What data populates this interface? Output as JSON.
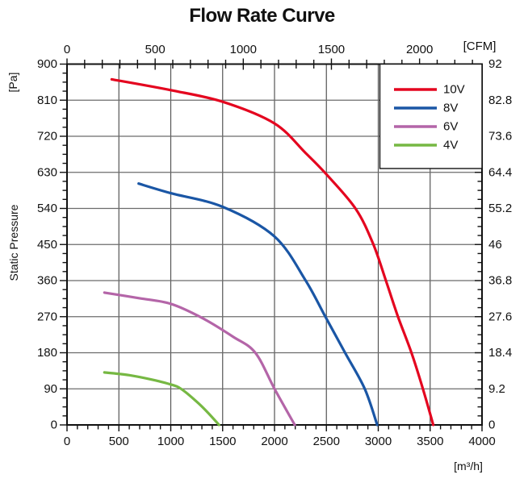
{
  "chart_data": {
    "type": "line",
    "title": "Flow Rate Curve",
    "x_axis": {
      "unit": "[m³/h]",
      "min": 0,
      "max": 4000,
      "major_step": 500,
      "minor_step": 100,
      "tick_labels": [
        "0",
        "500",
        "1000",
        "1500",
        "2000",
        "2500",
        "3000",
        "3500",
        "4000"
      ]
    },
    "x_top_axis": {
      "unit": "[CFM]",
      "min": 0,
      "max": 2300,
      "major_step": 500,
      "minor_step": 100,
      "m3h_per_cfm": 1.699,
      "tick_labels": [
        "0",
        "500",
        "1000",
        "1500",
        "2000"
      ]
    },
    "y_left_axis": {
      "unit": "[Pa]",
      "axis_title": "Static Pressure",
      "min": 0,
      "max": 900,
      "major_step": 90,
      "minor_step": 22.5,
      "tick_labels": [
        "0",
        "90",
        "180",
        "270",
        "360",
        "450",
        "540",
        "630",
        "720",
        "810",
        "900"
      ]
    },
    "y_right_axis": {
      "min": 0,
      "max": 92,
      "major_step": 9.2,
      "minor_step": 2.3,
      "tick_labels": [
        "0",
        "9.2",
        "18.4",
        "27.6",
        "36.8",
        "46",
        "55.2",
        "64.4",
        "73.6",
        "82.8",
        "92"
      ]
    },
    "grid": "major-both",
    "legend": {
      "position": "top-right",
      "entries": [
        "10V",
        "8V",
        "6V",
        "4V"
      ]
    },
    "series": [
      {
        "name": "10V",
        "color": "#e4051f",
        "points": [
          [
            430,
            862
          ],
          [
            1000,
            835
          ],
          [
            1500,
            806
          ],
          [
            2000,
            752
          ],
          [
            2300,
            678
          ],
          [
            2500,
            625
          ],
          [
            2780,
            540
          ],
          [
            2950,
            452
          ],
          [
            3080,
            355
          ],
          [
            3190,
            270
          ],
          [
            3320,
            180
          ],
          [
            3430,
            90
          ],
          [
            3530,
            0
          ]
        ]
      },
      {
        "name": "8V",
        "color": "#1a56a5",
        "points": [
          [
            690,
            602
          ],
          [
            1000,
            578
          ],
          [
            1500,
            544
          ],
          [
            2000,
            470
          ],
          [
            2300,
            360
          ],
          [
            2490,
            270
          ],
          [
            2680,
            180
          ],
          [
            2870,
            90
          ],
          [
            2990,
            0
          ]
        ]
      },
      {
        "name": "6V",
        "color": "#b465a8",
        "points": [
          [
            360,
            330
          ],
          [
            700,
            316
          ],
          [
            1000,
            302
          ],
          [
            1300,
            267
          ],
          [
            1600,
            220
          ],
          [
            1815,
            180
          ],
          [
            2000,
            90
          ],
          [
            2195,
            0
          ]
        ]
      },
      {
        "name": "4V",
        "color": "#76b843",
        "points": [
          [
            360,
            131
          ],
          [
            600,
            124
          ],
          [
            800,
            114
          ],
          [
            1000,
            101
          ],
          [
            1100,
            90
          ],
          [
            1250,
            58
          ],
          [
            1360,
            30
          ],
          [
            1465,
            0
          ]
        ]
      }
    ]
  }
}
